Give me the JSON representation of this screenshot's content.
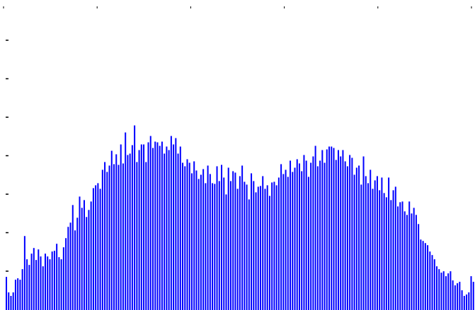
{
  "chart_data": {
    "type": "bar",
    "title": "",
    "xlabel": "",
    "ylabel": "",
    "bar_color": "#0000ff",
    "grid": false,
    "x_tick_count": 6,
    "y_tick_count": 7,
    "ylim": [
      0,
      440
    ],
    "values": [
      47,
      25,
      20,
      25,
      43,
      45,
      43,
      58,
      105,
      72,
      64,
      80,
      88,
      71,
      86,
      76,
      62,
      80,
      76,
      72,
      83,
      84,
      94,
      75,
      72,
      89,
      102,
      118,
      124,
      149,
      113,
      131,
      161,
      145,
      156,
      132,
      142,
      154,
      173,
      177,
      180,
      172,
      199,
      210,
      196,
      205,
      226,
      207,
      221,
      206,
      235,
      208,
      252,
      220,
      222,
      234,
      262,
      210,
      227,
      235,
      235,
      210,
      238,
      247,
      230,
      239,
      238,
      233,
      239,
      222,
      232,
      227,
      247,
      235,
      244,
      222,
      232,
      209,
      204,
      214,
      209,
      194,
      211,
      198,
      186,
      192,
      200,
      180,
      205,
      193,
      180,
      179,
      204,
      183,
      206,
      188,
      164,
      202,
      183,
      197,
      195,
      172,
      190,
      205,
      182,
      178,
      157,
      194,
      183,
      167,
      175,
      176,
      190,
      172,
      177,
      162,
      181,
      182,
      177,
      188,
      207,
      193,
      199,
      189,
      212,
      196,
      202,
      214,
      208,
      197,
      220,
      212,
      189,
      209,
      218,
      233,
      204,
      212,
      227,
      209,
      228,
      232,
      232,
      230,
      213,
      227,
      218,
      227,
      211,
      204,
      220,
      216,
      192,
      202,
      205,
      178,
      218,
      190,
      180,
      199,
      172,
      184,
      190,
      170,
      188,
      166,
      160,
      188,
      156,
      170,
      175,
      147,
      153,
      154,
      140,
      135,
      154,
      137,
      145,
      135,
      122,
      100,
      98,
      95,
      92,
      83,
      78,
      72,
      62,
      58,
      53,
      55,
      48,
      52,
      55,
      42,
      35,
      38,
      40,
      28,
      20,
      22,
      25,
      48,
      40
    ]
  }
}
